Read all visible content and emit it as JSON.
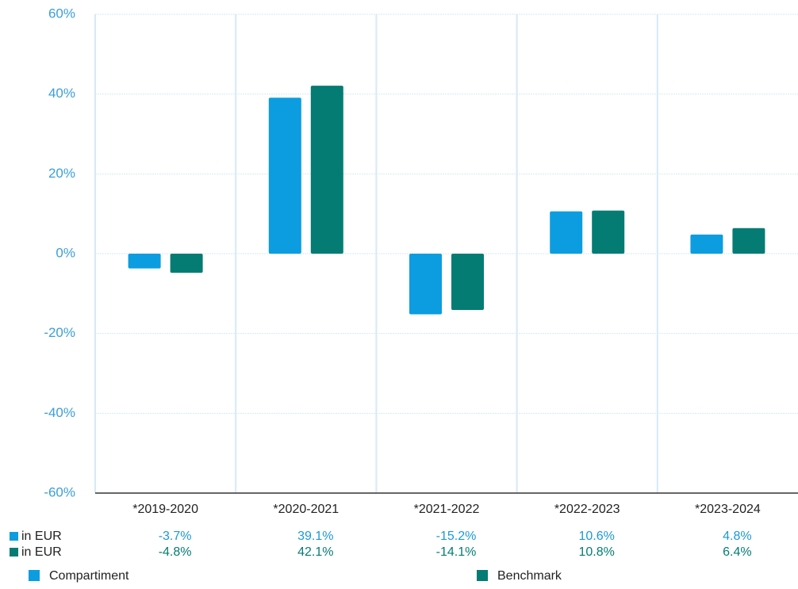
{
  "chart_data": {
    "type": "bar",
    "categories": [
      "*2019-2020",
      "*2020-2021",
      "*2021-2022",
      "*2022-2023",
      "*2023-2024"
    ],
    "series": [
      {
        "name": "Compartiment",
        "color": "#0b9de0",
        "row_label": "in EUR",
        "values": [
          -3.7,
          39.1,
          -15.2,
          10.6,
          4.8
        ],
        "value_labels": [
          "-3.7%",
          "39.1%",
          "-15.2%",
          "10.6%",
          "4.8%"
        ]
      },
      {
        "name": "Benchmark",
        "color": "#047c74",
        "row_label": "in EUR",
        "values": [
          -4.8,
          42.1,
          -14.1,
          10.8,
          6.4
        ],
        "value_labels": [
          "-4.8%",
          "42.1%",
          "-14.1%",
          "10.8%",
          "6.4%"
        ]
      }
    ],
    "ylim": [
      -60,
      60
    ],
    "yticks": [
      {
        "value": -60,
        "label": "-60%"
      },
      {
        "value": -40,
        "label": "-40%"
      },
      {
        "value": -20,
        "label": "-20%"
      },
      {
        "value": 0,
        "label": "0%"
      },
      {
        "value": 20,
        "label": "20%"
      },
      {
        "value": 40,
        "label": "40%"
      },
      {
        "value": 60,
        "label": "60%"
      }
    ],
    "grid": true
  }
}
